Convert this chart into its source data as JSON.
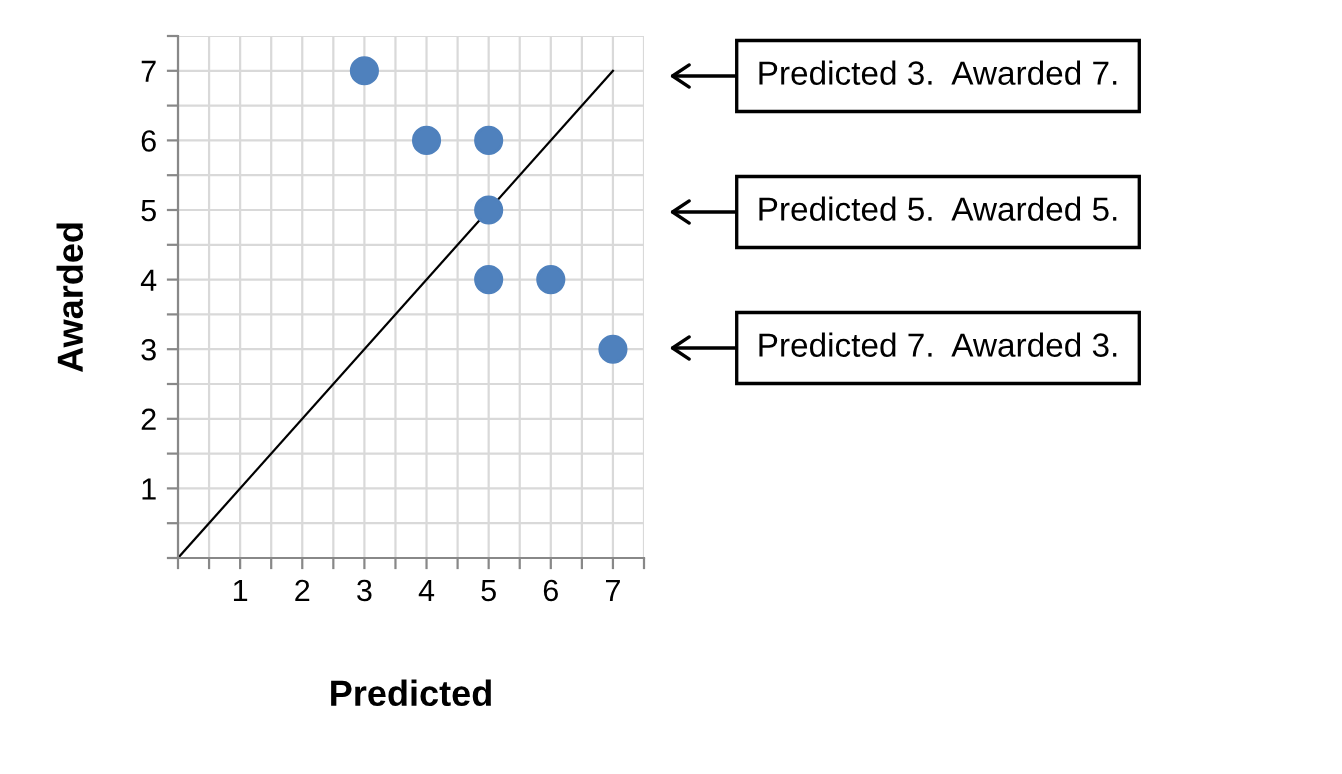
{
  "chart_data": {
    "type": "scatter",
    "xlabel": "Predicted",
    "ylabel": "Awarded",
    "xlim": [
      0,
      7.5
    ],
    "ylim": [
      0,
      7.5
    ],
    "xticks": [
      {
        "value": 0,
        "label": null
      },
      {
        "value": 0.5,
        "label": null
      },
      1,
      {
        "value": 1.5,
        "label": null
      },
      2,
      {
        "value": 2.5,
        "label": null
      },
      3,
      {
        "value": 3.5,
        "label": null
      },
      4,
      {
        "value": 4.5,
        "label": null
      },
      5,
      {
        "value": 5.5,
        "label": null
      },
      6,
      {
        "value": 6.5,
        "label": null
      },
      7,
      {
        "value": 7.5,
        "label": null
      }
    ],
    "yticks": [
      {
        "value": 0,
        "label": null
      },
      {
        "value": 0.5,
        "label": null
      },
      1,
      {
        "value": 1.5,
        "label": null
      },
      2,
      {
        "value": 2.5,
        "label": null
      },
      3,
      {
        "value": 3.5,
        "label": null
      },
      4,
      {
        "value": 4.5,
        "label": null
      },
      5,
      {
        "value": 5.5,
        "label": null
      },
      6,
      {
        "value": 6.5,
        "label": null
      },
      7,
      {
        "value": 7.5,
        "label": null
      }
    ],
    "grid": true,
    "marker": "circle",
    "series": [
      {
        "color": "#4f81bd",
        "x": [
          3,
          4,
          5,
          5,
          5,
          6,
          7
        ],
        "values": [
          7,
          6,
          6,
          5,
          4,
          4,
          3
        ]
      },
      {
        "type": "line",
        "color": "#000000",
        "line_style": "solid",
        "marker": "none",
        "x": [
          0,
          7
        ],
        "values": [
          0,
          7
        ]
      }
    ],
    "annotations": [
      "Predicted 3.  Awarded 7.",
      "Predicted 5.  Awarded 5.",
      "Predicted 7.  Awarded 3."
    ]
  }
}
